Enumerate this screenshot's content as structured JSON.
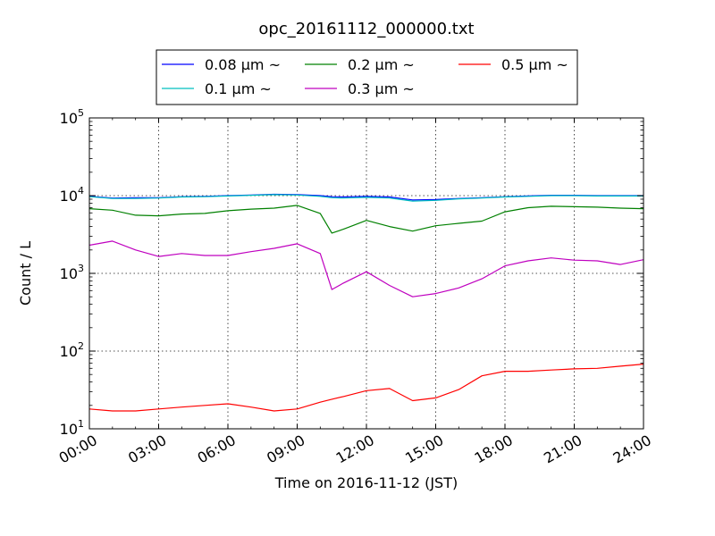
{
  "chart_data": {
    "type": "line",
    "title": "opc_20161112_000000.txt",
    "xlabel": "Time on 2016-11-12 (JST)",
    "ylabel": "Count / L",
    "yscale": "log",
    "xlim": [
      "00:00",
      "24:00"
    ],
    "ylim": [
      10,
      100000
    ],
    "grid": true,
    "legend_position": "top-center",
    "x_ticks": [
      "00:00",
      "03:00",
      "06:00",
      "09:00",
      "12:00",
      "15:00",
      "18:00",
      "21:00",
      "24:00"
    ],
    "y_ticks": [
      {
        "base": "10",
        "exp": "1",
        "value": 10
      },
      {
        "base": "10",
        "exp": "2",
        "value": 100
      },
      {
        "base": "10",
        "exp": "3",
        "value": 1000
      },
      {
        "base": "10",
        "exp": "4",
        "value": 10000
      },
      {
        "base": "10",
        "exp": "5",
        "value": 100000
      }
    ],
    "x": [
      "00:00",
      "01:00",
      "02:00",
      "03:00",
      "04:00",
      "05:00",
      "06:00",
      "07:00",
      "08:00",
      "09:00",
      "10:00",
      "10:30",
      "11:00",
      "12:00",
      "13:00",
      "14:00",
      "15:00",
      "16:00",
      "17:00",
      "18:00",
      "19:00",
      "20:00",
      "21:00",
      "22:00",
      "23:00",
      "24:00"
    ],
    "series": [
      {
        "name": "0.08 μm ~",
        "color": "#0000ff",
        "values": [
          9800,
          9300,
          9400,
          9400,
          9700,
          9800,
          10000,
          10200,
          10400,
          10300,
          10000,
          9700,
          9600,
          9800,
          9600,
          8800,
          8900,
          9200,
          9400,
          9700,
          9900,
          10100,
          10100,
          10000,
          10000,
          10000
        ]
      },
      {
        "name": "0.1 μm ~",
        "color": "#00bfbf",
        "values": [
          9700,
          9200,
          9200,
          9300,
          9600,
          9700,
          9900,
          10100,
          10300,
          10200,
          9800,
          9400,
          9300,
          9500,
          9300,
          8500,
          8700,
          9100,
          9300,
          9600,
          9800,
          10000,
          10000,
          9900,
          9900,
          9900
        ]
      },
      {
        "name": "0.2 μm ~",
        "color": "#008000",
        "values": [
          6800,
          6500,
          5600,
          5500,
          5800,
          5900,
          6400,
          6700,
          6900,
          7500,
          5900,
          3300,
          3700,
          4800,
          4000,
          3500,
          4100,
          4400,
          4700,
          6200,
          7000,
          7300,
          7200,
          7100,
          6900,
          6800
        ]
      },
      {
        "name": "0.3 μm ~",
        "color": "#bf00bf",
        "values": [
          2300,
          2600,
          2000,
          1650,
          1800,
          1700,
          1700,
          1900,
          2100,
          2400,
          1800,
          620,
          750,
          1050,
          700,
          500,
          550,
          650,
          850,
          1250,
          1450,
          1580,
          1480,
          1450,
          1300,
          1500
        ]
      },
      {
        "name": "0.5 μm ~",
        "color": "#ff0000",
        "values": [
          18,
          17,
          17,
          18,
          19,
          20,
          21,
          19,
          17,
          18,
          22,
          24,
          26,
          31,
          33,
          23,
          25,
          32,
          48,
          55,
          55,
          57,
          59,
          60,
          64,
          68
        ]
      }
    ]
  }
}
